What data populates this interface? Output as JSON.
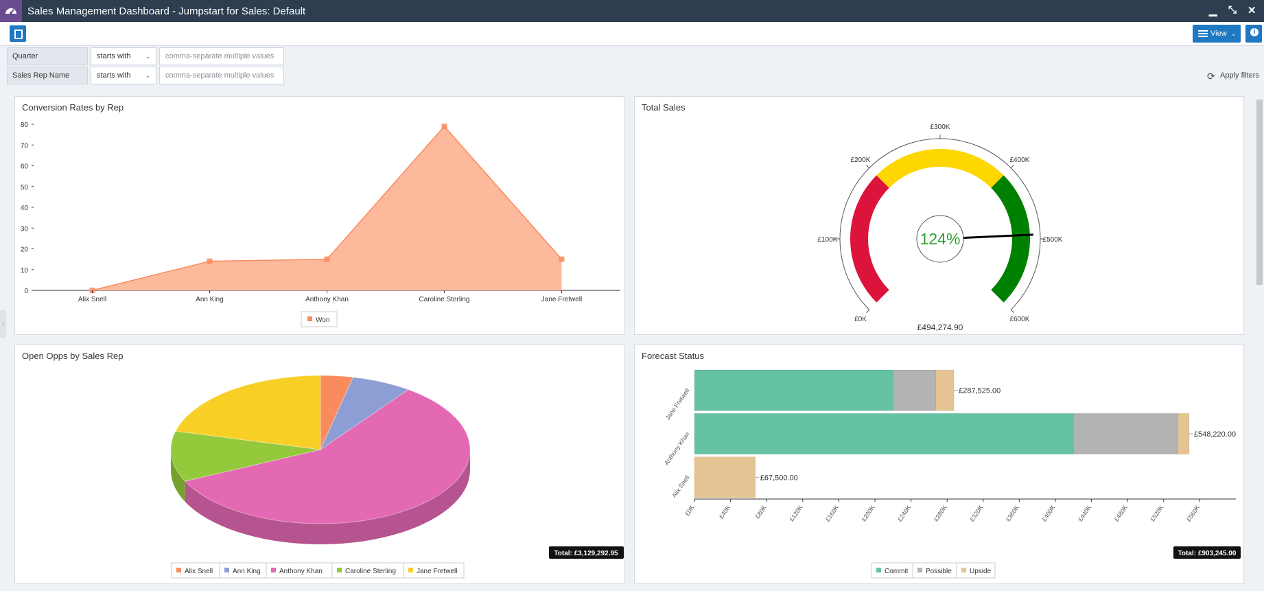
{
  "window": {
    "title": "Sales Management Dashboard - Jumpstart for Sales: Default"
  },
  "toolbar": {
    "view_label": "View"
  },
  "filters": [
    {
      "label": "Quarter",
      "operator": "starts with",
      "placeholder": "comma-separate multiple values"
    },
    {
      "label": "Sales Rep Name",
      "operator": "starts with",
      "placeholder": "comma-separate multiple values"
    }
  ],
  "apply_label": "Apply filters",
  "panels": {
    "conversion": {
      "title": "Conversion Rates by Rep"
    },
    "total_sales": {
      "title": "Total Sales"
    },
    "open_opps": {
      "title": "Open Opps by Sales Rep"
    },
    "forecast": {
      "title": "Forecast Status"
    }
  },
  "chart_data": [
    {
      "id": "conversion",
      "type": "area",
      "title": "Conversion Rates by Rep",
      "categories": [
        "Alix Snell",
        "Ann King",
        "Anthony Khan",
        "Caroline Sterling",
        "Jane Fretwell"
      ],
      "series": [
        {
          "name": "Won",
          "values": [
            0,
            14,
            15,
            79,
            15
          ]
        }
      ],
      "yticks": [
        0,
        10,
        20,
        30,
        40,
        50,
        60,
        70,
        80
      ],
      "ylim": [
        0,
        80
      ],
      "color": "#fb9a6f",
      "legend": "bottom"
    },
    {
      "id": "total_sales",
      "type": "gauge",
      "title": "Total Sales",
      "value": 494274.9,
      "value_label": "£494,274.90",
      "percent_label": "124%",
      "min": 0,
      "max": 600000,
      "ticks": [
        "£0K",
        "£100K",
        "£200K",
        "£300K",
        "£400K",
        "£500K",
        "£600K"
      ],
      "bands": [
        {
          "from": 0,
          "to": 200000,
          "color": "#dc143c"
        },
        {
          "from": 200000,
          "to": 400000,
          "color": "#ffd700"
        },
        {
          "from": 400000,
          "to": 600000,
          "color": "#008000"
        }
      ]
    },
    {
      "id": "open_opps",
      "type": "pie",
      "title": "Open Opps by Sales Rep",
      "labels": [
        "Alix Snell",
        "Ann King",
        "Anthony Khan",
        "Caroline Sterling",
        "Jane Fretwell"
      ],
      "values": [
        3.5,
        6.5,
        58,
        11,
        21
      ],
      "colors": [
        "#f98b5f",
        "#8c9ed4",
        "#e369b3",
        "#93c93a",
        "#f8cf25"
      ],
      "total_label": "Total: £3,129,292.95",
      "legend": "bottom"
    },
    {
      "id": "forecast",
      "type": "bar",
      "orientation": "horizontal",
      "stacked": true,
      "title": "Forecast Status",
      "categories": [
        "Jane Fretwell",
        "Anthony Khan",
        "Alix Snell"
      ],
      "series": [
        {
          "name": "Commit",
          "values": [
            220000,
            420000,
            0
          ],
          "color": "#66c2a5"
        },
        {
          "name": "Possible",
          "values": [
            47500,
            116000,
            0
          ],
          "color": "#b3b3b3"
        },
        {
          "name": "Upside",
          "values": [
            20025,
            12220,
            67500
          ],
          "color": "#e5c494"
        }
      ],
      "totals": [
        "£287,525.00",
        "£548,220.00",
        "£67,500.00"
      ],
      "xticks": [
        "£0K",
        "£40K",
        "£80K",
        "£120K",
        "£160K",
        "£200K",
        "£240K",
        "£280K",
        "£320K",
        "£360K",
        "£400K",
        "£440K",
        "£480K",
        "£520K",
        "£560K"
      ],
      "xlim": [
        0,
        600000
      ],
      "total_label": "Total: £903,245.00",
      "legend": "bottom"
    }
  ]
}
